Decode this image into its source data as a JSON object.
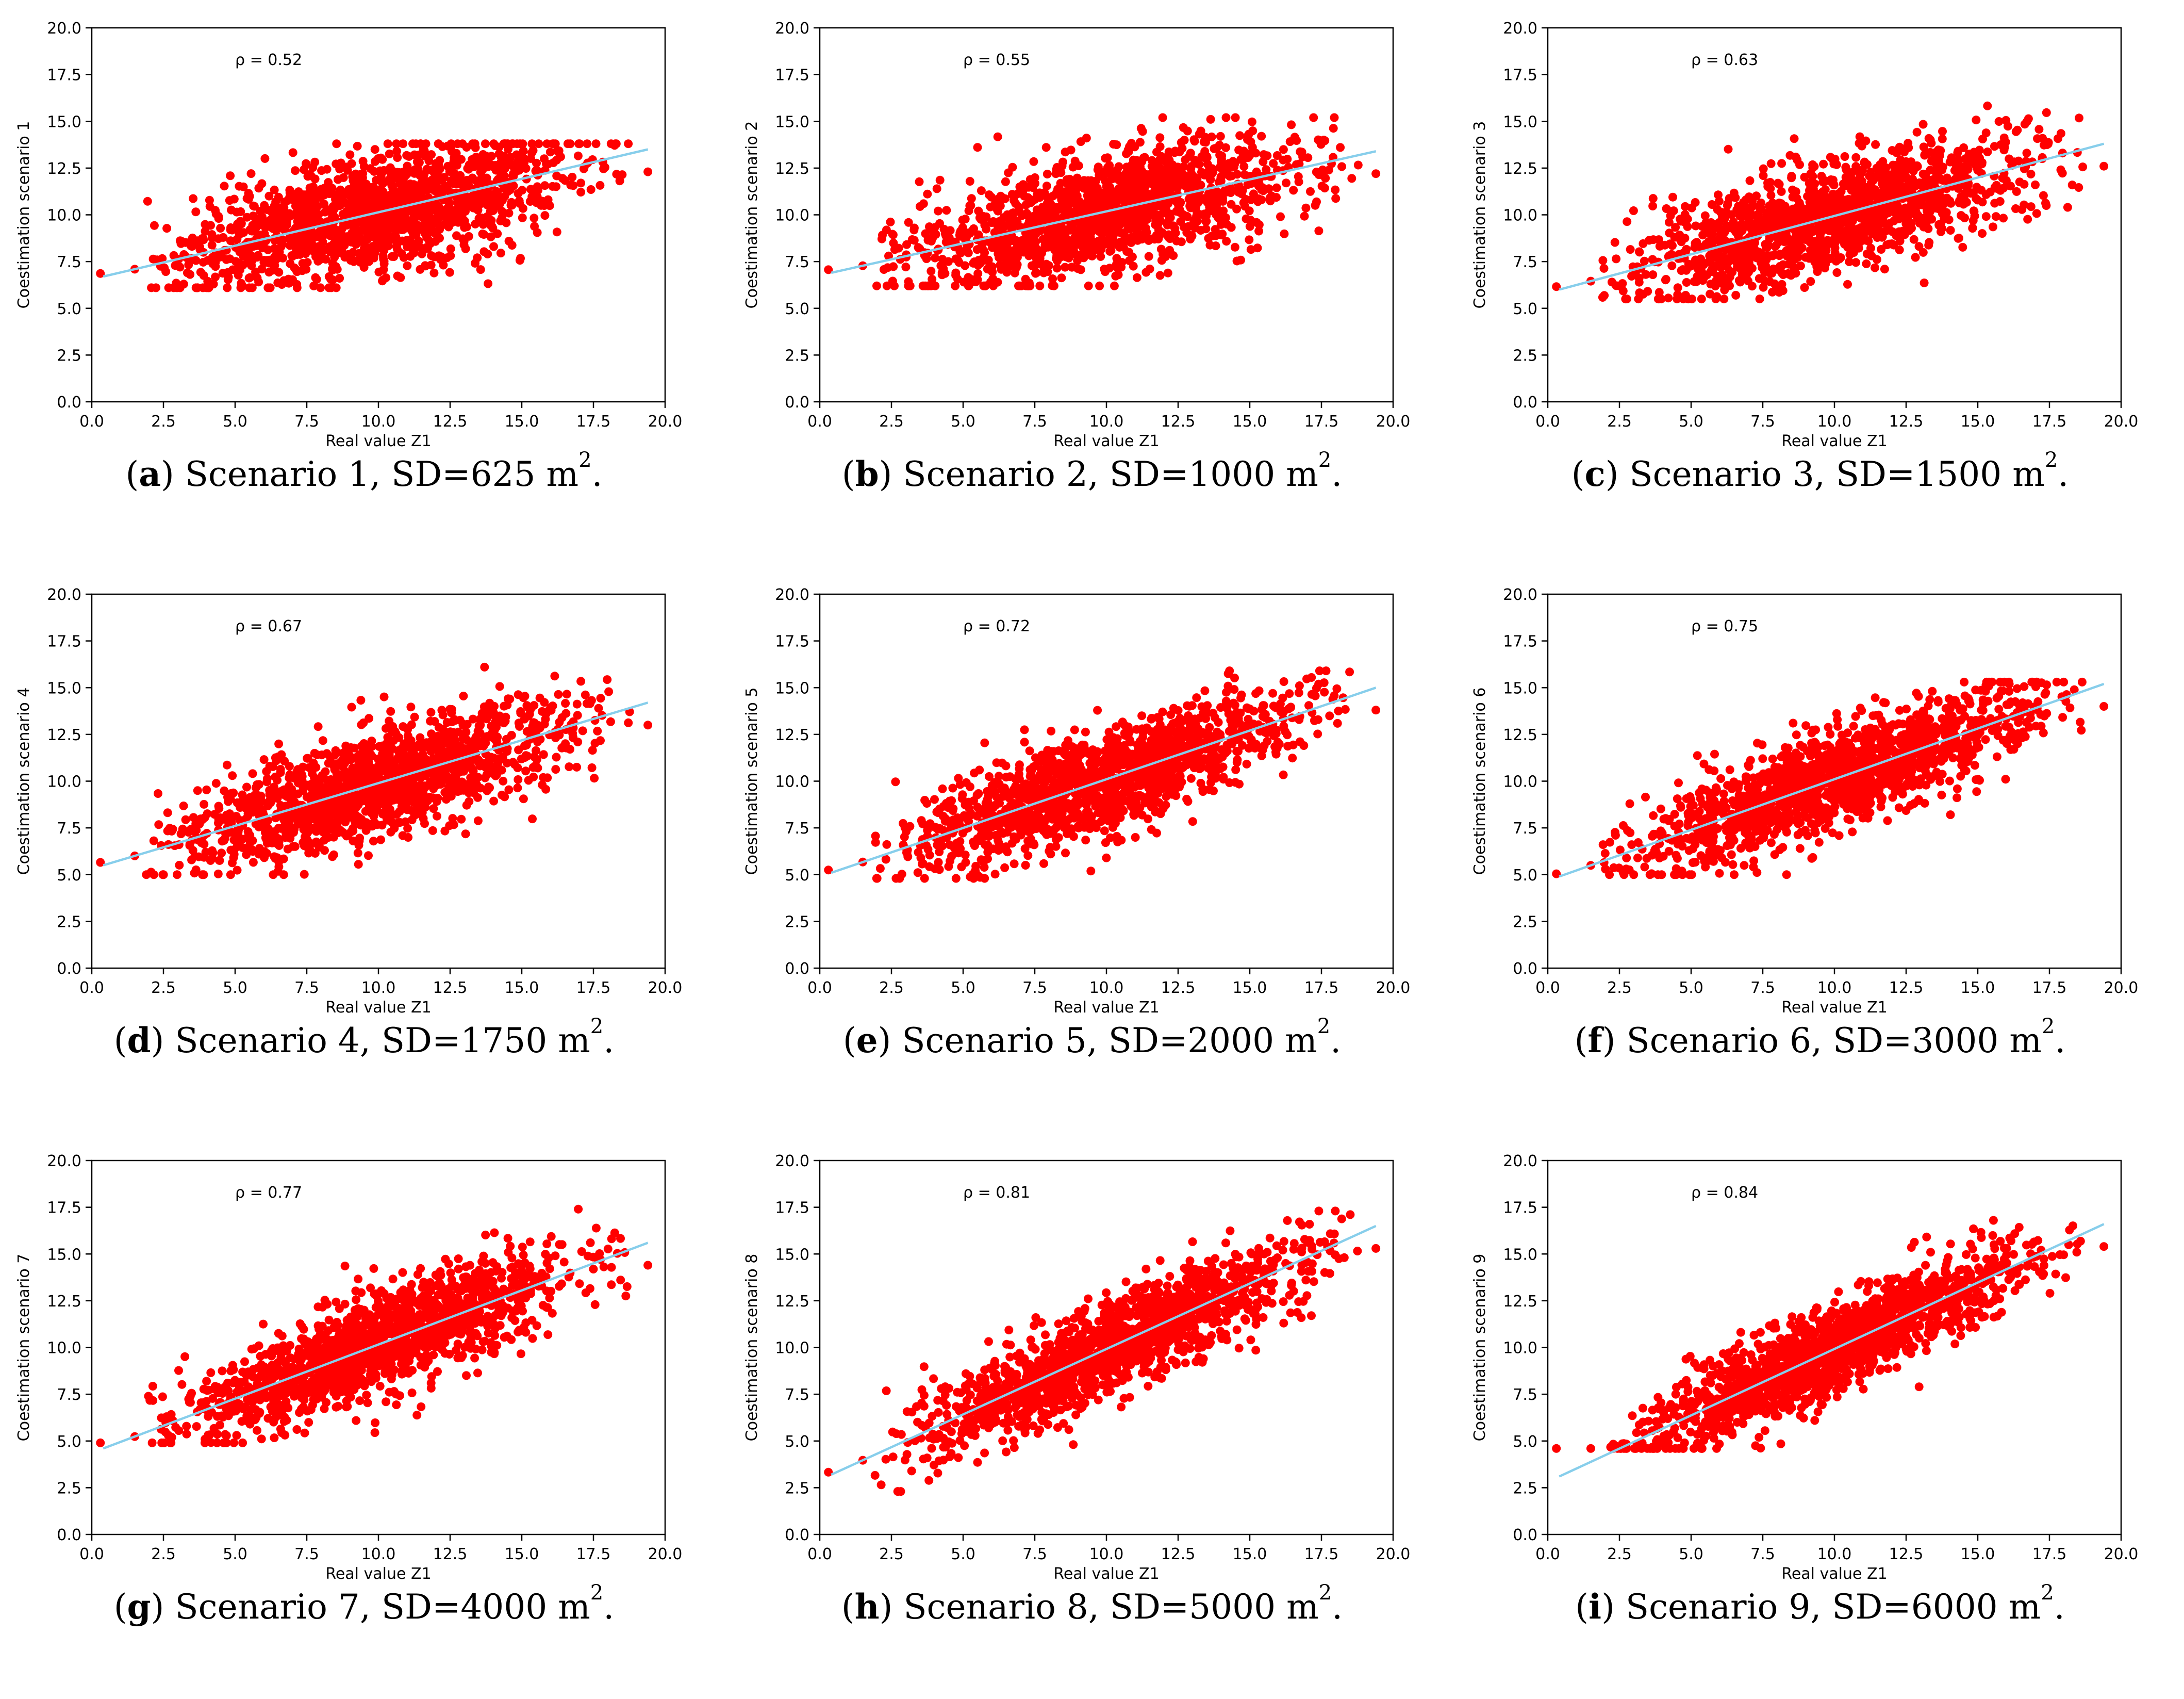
{
  "figure": {
    "colors": {
      "points": "#ff0000",
      "fit_line": "#87ceeb",
      "axes": "#000000"
    },
    "unit": "m",
    "unit_exponent": "2"
  },
  "chart_data": [
    {
      "type": "scatter",
      "panel_letter": "a",
      "caption_text": "Scenario 1, SD=625",
      "ylabel": "Coestimation scenario 1",
      "xlabel": "Real value Z1",
      "annotation": "ρ = 0.52",
      "rho": 0.52,
      "xlim": [
        0,
        20
      ],
      "ylim": [
        0,
        20
      ],
      "xticks": [
        "0.0",
        "2.5",
        "5.0",
        "7.5",
        "10.0",
        "12.5",
        "15.0",
        "17.5",
        "20.0"
      ],
      "yticks": [
        "0.0",
        "2.5",
        "5.0",
        "7.5",
        "10.0",
        "12.5",
        "15.0",
        "17.5",
        "20.0"
      ],
      "fit_line": {
        "x": [
          0.4,
          19.4
        ],
        "y": [
          6.7,
          13.5
        ]
      },
      "cloud": {
        "x_range": [
          0.3,
          19.4
        ],
        "y_range": [
          6.1,
          13.8
        ]
      }
    },
    {
      "type": "scatter",
      "panel_letter": "b",
      "caption_text": "Scenario 2, SD=1000",
      "ylabel": "Coestimation scenario 2",
      "xlabel": "Real value Z1",
      "annotation": "ρ = 0.55",
      "rho": 0.55,
      "xlim": [
        0,
        20
      ],
      "ylim": [
        0,
        20
      ],
      "xticks": [
        "0.0",
        "2.5",
        "5.0",
        "7.5",
        "10.0",
        "12.5",
        "15.0",
        "17.5",
        "20.0"
      ],
      "yticks": [
        "0.0",
        "2.5",
        "5.0",
        "7.5",
        "10.0",
        "12.5",
        "15.0",
        "17.5",
        "20.0"
      ],
      "fit_line": {
        "x": [
          0.4,
          19.4
        ],
        "y": [
          6.9,
          13.4
        ]
      },
      "cloud": {
        "x_range": [
          0.3,
          19.4
        ],
        "y_range": [
          6.2,
          15.2
        ]
      }
    },
    {
      "type": "scatter",
      "panel_letter": "c",
      "caption_text": "Scenario 3, SD=1500",
      "ylabel": "Coestimation scenario 3",
      "xlabel": "Real value Z1",
      "annotation": "ρ = 0.63",
      "rho": 0.63,
      "xlim": [
        0,
        20
      ],
      "ylim": [
        0,
        20
      ],
      "xticks": [
        "0.0",
        "2.5",
        "5.0",
        "7.5",
        "10.0",
        "12.5",
        "15.0",
        "17.5",
        "20.0"
      ],
      "yticks": [
        "0.0",
        "2.5",
        "5.0",
        "7.5",
        "10.0",
        "12.5",
        "15.0",
        "17.5",
        "20.0"
      ],
      "fit_line": {
        "x": [
          0.4,
          19.4
        ],
        "y": [
          6.0,
          13.8
        ]
      },
      "cloud": {
        "x_range": [
          0.3,
          19.4
        ],
        "y_range": [
          5.5,
          16.1
        ]
      }
    },
    {
      "type": "scatter",
      "panel_letter": "d",
      "caption_text": "Scenario 4, SD=1750",
      "ylabel": "Coestimation scenario 4",
      "xlabel": "Real value Z1",
      "annotation": "ρ = 0.67",
      "rho": 0.67,
      "xlim": [
        0,
        20
      ],
      "ylim": [
        0,
        20
      ],
      "xticks": [
        "0.0",
        "2.5",
        "5.0",
        "7.5",
        "10.0",
        "12.5",
        "15.0",
        "17.5",
        "20.0"
      ],
      "yticks": [
        "0.0",
        "2.5",
        "5.0",
        "7.5",
        "10.0",
        "12.5",
        "15.0",
        "17.5",
        "20.0"
      ],
      "fit_line": {
        "x": [
          0.4,
          19.4
        ],
        "y": [
          5.5,
          14.2
        ]
      },
      "cloud": {
        "x_range": [
          0.3,
          19.4
        ],
        "y_range": [
          5.0,
          16.1
        ]
      }
    },
    {
      "type": "scatter",
      "panel_letter": "e",
      "caption_text": "Scenario 5, SD=2000",
      "ylabel": "Coestimation scenario 5",
      "xlabel": "Real value Z1",
      "annotation": "ρ = 0.72",
      "rho": 0.72,
      "xlim": [
        0,
        20
      ],
      "ylim": [
        0,
        20
      ],
      "xticks": [
        "0.0",
        "2.5",
        "5.0",
        "7.5",
        "10.0",
        "12.5",
        "15.0",
        "17.5",
        "20.0"
      ],
      "yticks": [
        "0.0",
        "2.5",
        "5.0",
        "7.5",
        "10.0",
        "12.5",
        "15.0",
        "17.5",
        "20.0"
      ],
      "fit_line": {
        "x": [
          0.4,
          19.4
        ],
        "y": [
          5.1,
          15.0
        ]
      },
      "cloud": {
        "x_range": [
          0.3,
          19.4
        ],
        "y_range": [
          4.8,
          15.9
        ]
      }
    },
    {
      "type": "scatter",
      "panel_letter": "f",
      "caption_text": "Scenario 6, SD=3000",
      "ylabel": "Coestimation scenario 6",
      "xlabel": "Real value Z1",
      "annotation": "ρ = 0.75",
      "rho": 0.75,
      "xlim": [
        0,
        20
      ],
      "ylim": [
        0,
        20
      ],
      "xticks": [
        "0.0",
        "2.5",
        "5.0",
        "7.5",
        "10.0",
        "12.5",
        "15.0",
        "17.5",
        "20.0"
      ],
      "yticks": [
        "0.0",
        "2.5",
        "5.0",
        "7.5",
        "10.0",
        "12.5",
        "15.0",
        "17.5",
        "20.0"
      ],
      "fit_line": {
        "x": [
          0.4,
          19.4
        ],
        "y": [
          4.9,
          15.2
        ]
      },
      "cloud": {
        "x_range": [
          0.3,
          19.4
        ],
        "y_range": [
          5.0,
          15.3
        ]
      }
    },
    {
      "type": "scatter",
      "panel_letter": "g",
      "caption_text": "Scenario 7, SD=4000",
      "ylabel": "Coestimation scenario 7",
      "xlabel": "Real value Z1",
      "annotation": "ρ = 0.77",
      "rho": 0.77,
      "xlim": [
        0,
        20
      ],
      "ylim": [
        0,
        20
      ],
      "xticks": [
        "0.0",
        "2.5",
        "5.0",
        "7.5",
        "10.0",
        "12.5",
        "15.0",
        "17.5",
        "20.0"
      ],
      "yticks": [
        "0.0",
        "2.5",
        "5.0",
        "7.5",
        "10.0",
        "12.5",
        "15.0",
        "17.5",
        "20.0"
      ],
      "fit_line": {
        "x": [
          0.4,
          19.4
        ],
        "y": [
          4.6,
          15.6
        ]
      },
      "cloud": {
        "x_range": [
          0.3,
          19.4
        ],
        "y_range": [
          4.9,
          17.4
        ]
      }
    },
    {
      "type": "scatter",
      "panel_letter": "h",
      "caption_text": "Scenario 8, SD=5000",
      "ylabel": "Coestimation scenario 8",
      "xlabel": "Real value Z1",
      "annotation": "ρ = 0.81",
      "rho": 0.81,
      "xlim": [
        0,
        20
      ],
      "ylim": [
        0,
        20
      ],
      "xticks": [
        "0.0",
        "2.5",
        "5.0",
        "7.5",
        "10.0",
        "12.5",
        "15.0",
        "17.5",
        "20.0"
      ],
      "yticks": [
        "0.0",
        "2.5",
        "5.0",
        "7.5",
        "10.0",
        "12.5",
        "15.0",
        "17.5",
        "20.0"
      ],
      "fit_line": {
        "x": [
          0.4,
          19.4
        ],
        "y": [
          3.2,
          16.5
        ]
      },
      "cloud": {
        "x_range": [
          0.3,
          19.4
        ],
        "y_range": [
          2.3,
          17.3
        ]
      }
    },
    {
      "type": "scatter",
      "panel_letter": "i",
      "caption_text": "Scenario 9, SD=6000",
      "ylabel": "Coestimation scenario 9",
      "xlabel": "Real value Z1",
      "annotation": "ρ = 0.84",
      "rho": 0.84,
      "xlim": [
        0,
        20
      ],
      "ylim": [
        0,
        20
      ],
      "xticks": [
        "0.0",
        "2.5",
        "5.0",
        "7.5",
        "10.0",
        "12.5",
        "15.0",
        "17.5",
        "20.0"
      ],
      "yticks": [
        "0.0",
        "2.5",
        "5.0",
        "7.5",
        "10.0",
        "12.5",
        "15.0",
        "17.5",
        "20.0"
      ],
      "fit_line": {
        "x": [
          0.4,
          19.4
        ],
        "y": [
          3.1,
          16.6
        ]
      },
      "cloud": {
        "x_range": [
          0.3,
          19.4
        ],
        "y_range": [
          4.6,
          16.8
        ]
      }
    }
  ]
}
